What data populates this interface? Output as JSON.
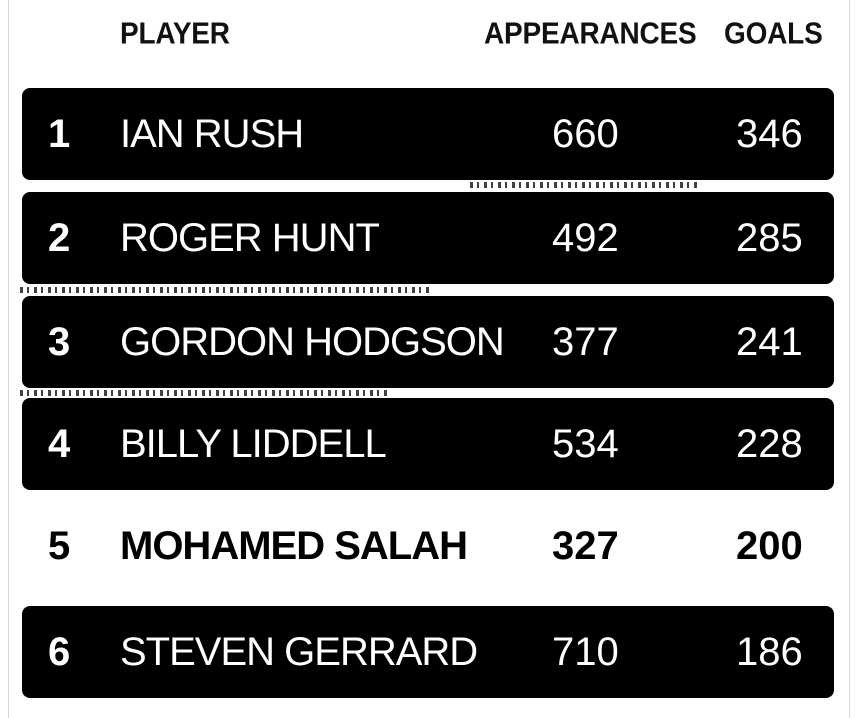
{
  "headers": {
    "player": "PLAYER",
    "appearances": "APPEARANCES",
    "goals": "GOALS"
  },
  "rows": [
    {
      "rank": "1",
      "player": "IAN RUSH",
      "appearances": "660",
      "goals": "346",
      "style": "dark"
    },
    {
      "rank": "2",
      "player": "ROGER HUNT",
      "appearances": "492",
      "goals": "285",
      "style": "dark"
    },
    {
      "rank": "3",
      "player": "GORDON HODGSON",
      "appearances": "377",
      "goals": "241",
      "style": "dark"
    },
    {
      "rank": "4",
      "player": "BILLY LIDDELL",
      "appearances": "534",
      "goals": "228",
      "style": "dark"
    },
    {
      "rank": "5",
      "player": "MOHAMED SALAH",
      "appearances": "327",
      "goals": "200",
      "style": "light"
    },
    {
      "rank": "6",
      "player": "STEVEN GERRARD",
      "appearances": "710",
      "goals": "186",
      "style": "dark"
    }
  ],
  "colors": {
    "row_dark": "#000000",
    "row_light": "#ffffff",
    "text_on_dark": "#ffffff",
    "text_on_light": "#000000"
  }
}
